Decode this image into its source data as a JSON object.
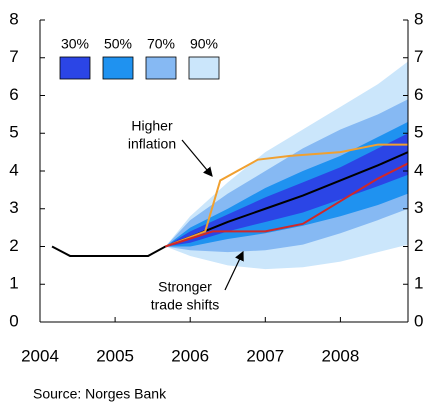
{
  "chart_data": {
    "type": "fan",
    "xlim": [
      2004,
      2008.9
    ],
    "xticks": [
      2004,
      2005,
      2006,
      2007,
      2008
    ],
    "ylim": [
      0,
      8
    ],
    "yticks": [
      0,
      1,
      2,
      3,
      4,
      5,
      6,
      7,
      8
    ],
    "y2lim": [
      0,
      8
    ],
    "y2ticks": [
      0,
      1,
      2,
      3,
      4,
      5,
      6,
      7,
      8
    ],
    "band_x": [
      2005.67,
      2006,
      2006.5,
      2007,
      2007.5,
      2008,
      2008.5,
      2008.9
    ],
    "bands": [
      {
        "name": "30%",
        "color": "#2b45e6",
        "lower": [
          2.0,
          2.1,
          2.4,
          2.65,
          2.9,
          3.25,
          3.6,
          3.9
        ],
        "upper": [
          2.0,
          2.4,
          2.85,
          3.3,
          3.7,
          4.1,
          4.6,
          5.0
        ]
      },
      {
        "name": "50%",
        "color": "#1f92f0",
        "lower": [
          2.0,
          2.0,
          2.2,
          2.35,
          2.55,
          2.8,
          3.1,
          3.4
        ],
        "upper": [
          2.0,
          2.5,
          3.0,
          3.55,
          4.0,
          4.4,
          4.9,
          5.3
        ]
      },
      {
        "name": "70%",
        "color": "#86b9f3",
        "lower": [
          2.0,
          1.9,
          1.85,
          1.9,
          2.05,
          2.35,
          2.7,
          3.0
        ],
        "upper": [
          2.0,
          2.7,
          3.4,
          4.0,
          4.6,
          5.1,
          5.5,
          5.9
        ]
      },
      {
        "name": "90%",
        "color": "#cbe6fb",
        "lower": [
          2.0,
          1.75,
          1.5,
          1.4,
          1.45,
          1.6,
          1.85,
          2.05
        ],
        "upper": [
          2.0,
          2.8,
          3.7,
          4.5,
          5.1,
          5.7,
          6.3,
          6.9
        ]
      }
    ],
    "lines": [
      {
        "color": "#000000",
        "x": [
          2004.16,
          2004.4,
          2005.44,
          2005.67,
          2006,
          2006.5,
          2007,
          2007.5,
          2008,
          2008.5,
          2008.9
        ],
        "values": [
          2.0,
          1.75,
          1.75,
          2.0,
          2.25,
          2.65,
          3.0,
          3.35,
          3.75,
          4.15,
          4.5
        ]
      },
      {
        "color": "#f0a030",
        "x": [
          2005.67,
          2006.2,
          2006.4,
          2006.9,
          2007.33,
          2008,
          2008.5,
          2008.9
        ],
        "values": [
          2.0,
          2.4,
          3.75,
          4.3,
          4.4,
          4.5,
          4.7,
          4.7
        ]
      },
      {
        "color": "#d02828",
        "x": [
          2005.67,
          2006.3,
          2007,
          2007.5,
          2008,
          2008.5,
          2008.9
        ],
        "values": [
          2.0,
          2.4,
          2.4,
          2.6,
          3.2,
          3.8,
          4.2
        ]
      }
    ],
    "annotations": [
      {
        "lines": [
          "Higher",
          "inflation"
        ]
      },
      {
        "lines": [
          "Stronger",
          "trade shifts"
        ]
      }
    ],
    "source": "Source: Norges Bank"
  }
}
